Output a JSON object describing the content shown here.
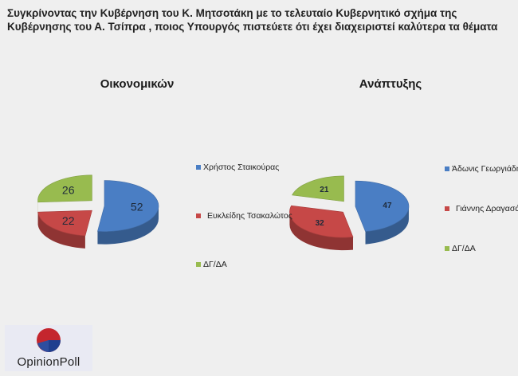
{
  "page": {
    "title": "Συγκρίνοντας την Κυβέρνηση του Κ. Μητσοτάκη με το τελευταίο Κυβερνητικό σχήμα της Κυβέρνησης  του Α. Τσίπρα , ποιος Υπουργός πιστεύετε ότι έχει διαχειριστεί καλύτερα τα θέματα"
  },
  "logo": {
    "text": "OpinionPoll"
  },
  "chart_data": [
    {
      "type": "pie",
      "title": "Οικονομικών",
      "slices": [
        {
          "label": "Χρήστος Σταικούρας",
          "value": 52,
          "color": "#4a7ec4"
        },
        {
          "label": "Ευκλείδης Τσακαλώτος",
          "value": 22,
          "color": "#c64847"
        },
        {
          "label": "ΔΓ/ΔΑ",
          "value": 26,
          "color": "#98bb4f"
        }
      ],
      "legend": "right"
    },
    {
      "type": "pie",
      "title": "Ανάπτυξης",
      "slices": [
        {
          "label": "Άδωνις Γεωργιάδης",
          "value": 47,
          "color": "#4a7ec4"
        },
        {
          "label": "Γιάννης Δραγασάκης",
          "value": 32,
          "color": "#c64847"
        },
        {
          "label": "ΔΓ/ΔΑ",
          "value": 21,
          "color": "#98bb4f"
        }
      ],
      "legend": "right"
    }
  ]
}
